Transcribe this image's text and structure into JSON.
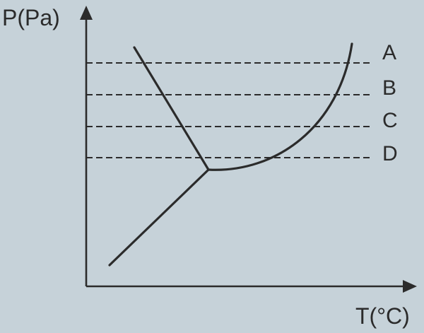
{
  "diagram": {
    "y_axis_label": "P(Pa)",
    "x_axis_label": "T(°C)",
    "pressure_levels": [
      "A",
      "B",
      "C",
      "D"
    ],
    "colors": {
      "background": "#c6d2d9",
      "ink": "#2b2b2b"
    }
  }
}
